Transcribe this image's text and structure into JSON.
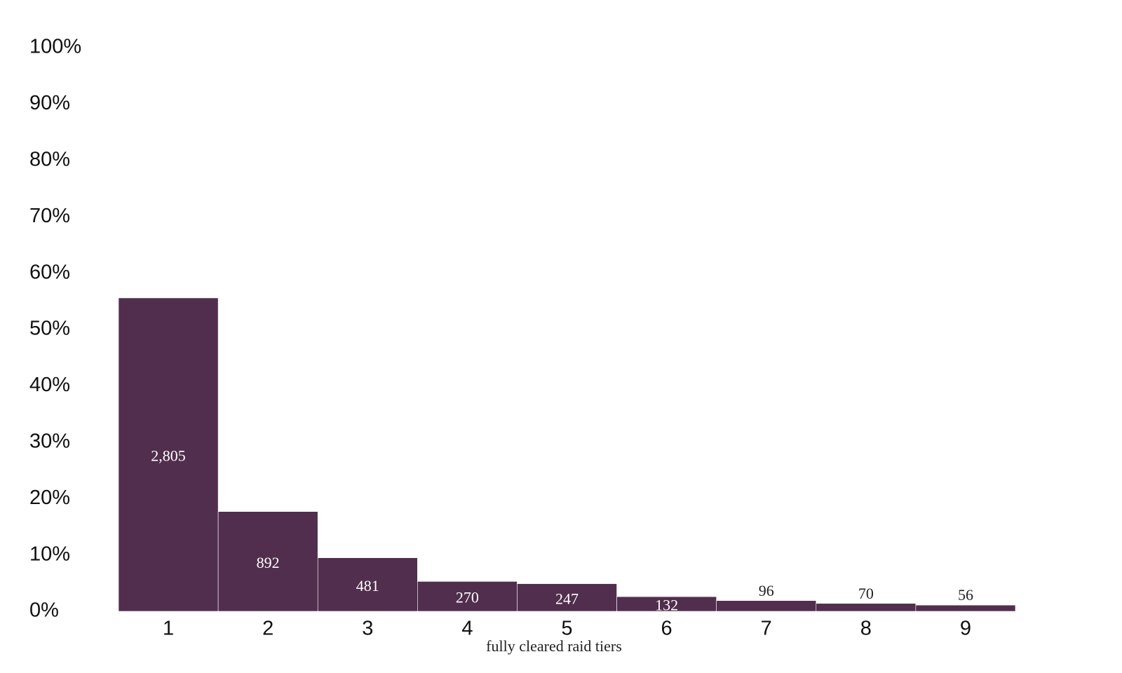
{
  "chart_data": {
    "type": "bar",
    "x_label": "fully cleared raid tiers",
    "categories": [
      "1",
      "2",
      "3",
      "4",
      "5",
      "6",
      "7",
      "8",
      "9"
    ],
    "values": [
      55.6,
      17.7,
      9.5,
      5.3,
      4.9,
      2.6,
      1.9,
      1.4,
      1.1
    ],
    "counts": [
      "2,805",
      "892",
      "481",
      "270",
      "247",
      "132",
      "96",
      "70",
      "56"
    ],
    "color": "#512e4d",
    "ylim": [
      0,
      100
    ],
    "yticks": [
      {
        "value": 0,
        "label": "0%"
      },
      {
        "value": 10,
        "label": "10%"
      },
      {
        "value": 20,
        "label": "20%"
      },
      {
        "value": 30,
        "label": "30%"
      },
      {
        "value": 40,
        "label": "40%"
      },
      {
        "value": 50,
        "label": "50%"
      },
      {
        "value": 60,
        "label": "60%"
      },
      {
        "value": 70,
        "label": "70%"
      },
      {
        "value": 80,
        "label": "80%"
      },
      {
        "value": 90,
        "label": "90%"
      },
      {
        "value": 100,
        "label": "100%"
      }
    ],
    "grid": false
  }
}
